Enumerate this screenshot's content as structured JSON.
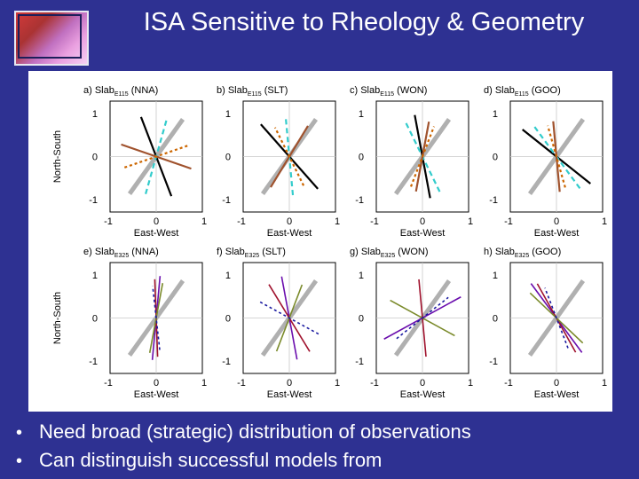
{
  "slide": {
    "title": "ISA Sensitive to Rheology & Geometry",
    "bullets": [
      "Need broad (strategic) distribution of observations",
      "Can distinguish successful models from"
    ]
  },
  "figure": {
    "x_axis_label": "East-West",
    "y_axis_label": "North-South",
    "tick_labels": [
      "-1",
      "0",
      "1"
    ],
    "panels": [
      {
        "letter": "a)",
        "slab": "Slab",
        "sub": "E115",
        "model": "(NNA)"
      },
      {
        "letter": "b)",
        "slab": "Slab",
        "sub": "E115",
        "model": "(SLT)"
      },
      {
        "letter": "c)",
        "slab": "Slab",
        "sub": "E115",
        "model": "(WON)"
      },
      {
        "letter": "d)",
        "slab": "Slab",
        "sub": "E115",
        "model": "(GOO)"
      },
      {
        "letter": "e)",
        "slab": "Slab",
        "sub": "E325",
        "model": "(NNA)"
      },
      {
        "letter": "f)",
        "slab": "Slab",
        "sub": "E325",
        "model": "(SLT)"
      },
      {
        "letter": "g)",
        "slab": "Slab",
        "sub": "E325",
        "model": "(WON)"
      },
      {
        "letter": "h)",
        "slab": "Slab",
        "sub": "E325",
        "model": "(GOO)"
      }
    ]
  },
  "colors": {
    "background": "#2e3192",
    "reference_line": "#b0b0b0",
    "top_row_series": [
      "#000000",
      "#33cccc",
      "#a0522d",
      "#cc6600"
    ],
    "bottom_row_series": [
      "#6a0dad",
      "#a0122d",
      "#7a8a2a",
      "#1a1aa0"
    ]
  }
}
